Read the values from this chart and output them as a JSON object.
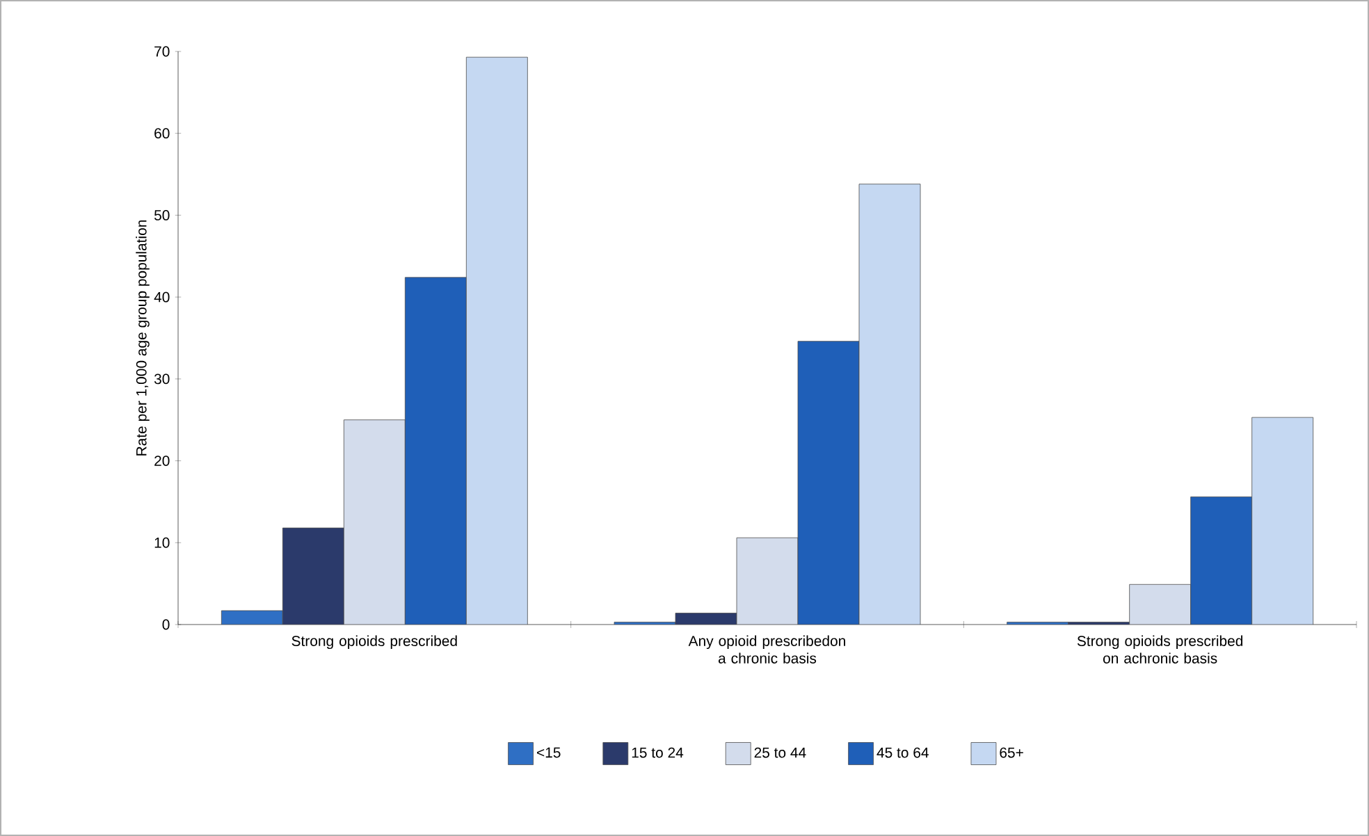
{
  "chart_data": {
    "type": "bar",
    "ylabel": "Rate per 1,000 age group population",
    "categories": [
      "Strong opioids prescribed",
      "Any opioid prescribedon a chronic basis",
      "Strong opioids prescribed on achronic basis"
    ],
    "series": [
      {
        "name": "<15",
        "color": "#2f6fc4",
        "values": [
          1.7,
          0.3,
          0.3
        ]
      },
      {
        "name": "15 to 24",
        "color": "#2b3a6b",
        "values": [
          11.8,
          1.4,
          0.3
        ]
      },
      {
        "name": "25 to 44",
        "color": "#d3dcec",
        "values": [
          25,
          10.6,
          4.9
        ]
      },
      {
        "name": "45 to 64",
        "color": "#1f5fb8",
        "values": [
          42.4,
          34.6,
          15.6
        ]
      },
      {
        "name": "65+",
        "color": "#c5d8f2",
        "values": [
          69.3,
          53.8,
          25.3
        ]
      }
    ],
    "ylim": [
      0,
      70
    ],
    "yticks": [
      0,
      10,
      20,
      30,
      40,
      50,
      60,
      70
    ],
    "grid": false,
    "legend": "bottom"
  }
}
